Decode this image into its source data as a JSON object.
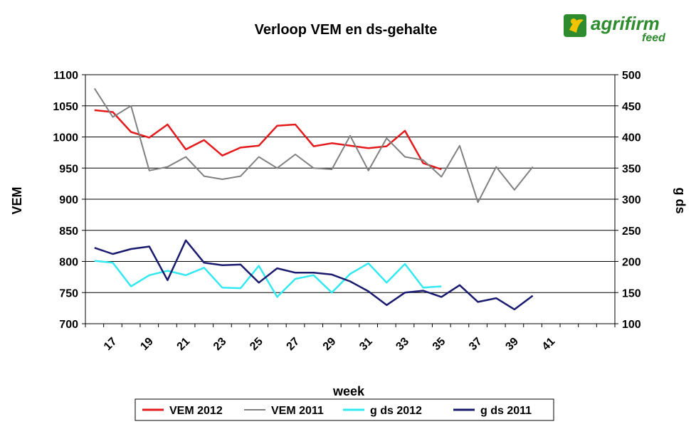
{
  "chart_data": {
    "type": "line",
    "title": "Verloop VEM en ds-gehalte",
    "xlabel": "week",
    "ylabel_left": "VEM",
    "ylabel_right": "g ds",
    "x": [
      16,
      17,
      18,
      19,
      20,
      21,
      22,
      23,
      24,
      25,
      26,
      27,
      28,
      29,
      30,
      31,
      32,
      33,
      34,
      35,
      36,
      37,
      38,
      39,
      40,
      41,
      42,
      43,
      44
    ],
    "x_tick_labels": [
      "17",
      "19",
      "21",
      "23",
      "25",
      "27",
      "29",
      "31",
      "33",
      "35",
      "37",
      "39",
      "41"
    ],
    "x_tick_values": [
      17,
      19,
      21,
      23,
      25,
      27,
      29,
      31,
      33,
      35,
      37,
      39,
      41
    ],
    "y_left_lim": [
      700,
      1100
    ],
    "y_left_ticks": [
      "700",
      "750",
      "800",
      "850",
      "900",
      "950",
      "1000",
      "1050",
      "1100"
    ],
    "y_right_lim": [
      100,
      500
    ],
    "y_right_ticks": [
      "100",
      "150",
      "200",
      "250",
      "300",
      "350",
      "400",
      "450",
      "500"
    ],
    "grid": true,
    "legend_position": "bottom",
    "series": [
      {
        "name": "VEM 2012",
        "axis": "left",
        "color": "#e41a1c",
        "x": [
          16,
          17,
          18,
          19,
          20,
          21,
          22,
          23,
          24,
          25,
          26,
          27,
          28,
          29,
          30,
          31,
          32,
          33,
          34,
          35
        ],
        "values": [
          1043,
          1040,
          1008,
          999,
          1020,
          980,
          995,
          970,
          983,
          986,
          1018,
          1020,
          985,
          990,
          986,
          982,
          985,
          1010,
          958,
          948
        ]
      },
      {
        "name": "VEM 2011",
        "axis": "left",
        "color": "#808080",
        "x": [
          16,
          17,
          18,
          19,
          20,
          21,
          22,
          23,
          24,
          25,
          26,
          27,
          28,
          29,
          30,
          31,
          32,
          33,
          34,
          35,
          36,
          37,
          38,
          39,
          40
        ],
        "values": [
          1078,
          1032,
          1050,
          946,
          952,
          968,
          937,
          932,
          937,
          968,
          950,
          972,
          950,
          948,
          1002,
          946,
          998,
          968,
          963,
          936,
          986,
          895,
          952,
          915,
          952
        ]
      },
      {
        "name": "g ds 2012",
        "axis": "right",
        "color": "#33e8f0",
        "x": [
          16,
          17,
          18,
          19,
          20,
          21,
          22,
          23,
          24,
          25,
          26,
          27,
          28,
          29,
          30,
          31,
          32,
          33,
          34,
          35
        ],
        "values": [
          201,
          198,
          160,
          178,
          185,
          178,
          190,
          158,
          157,
          193,
          143,
          172,
          178,
          150,
          180,
          197,
          166,
          196,
          158,
          160
        ]
      },
      {
        "name": "g ds 2011",
        "axis": "right",
        "color": "#1a1a6e",
        "x": [
          16,
          17,
          18,
          19,
          20,
          21,
          22,
          23,
          24,
          25,
          26,
          27,
          28,
          29,
          30,
          31,
          32,
          33,
          34,
          35,
          36,
          37,
          38,
          39,
          40
        ],
        "values": [
          222,
          212,
          220,
          224,
          170,
          234,
          198,
          194,
          195,
          166,
          189,
          182,
          182,
          179,
          168,
          152,
          130,
          150,
          153,
          143,
          162,
          135,
          141,
          123,
          145
        ]
      }
    ]
  },
  "logo": {
    "brand": "agrifirm",
    "sub": "feed",
    "color": "#2e8b2e"
  }
}
